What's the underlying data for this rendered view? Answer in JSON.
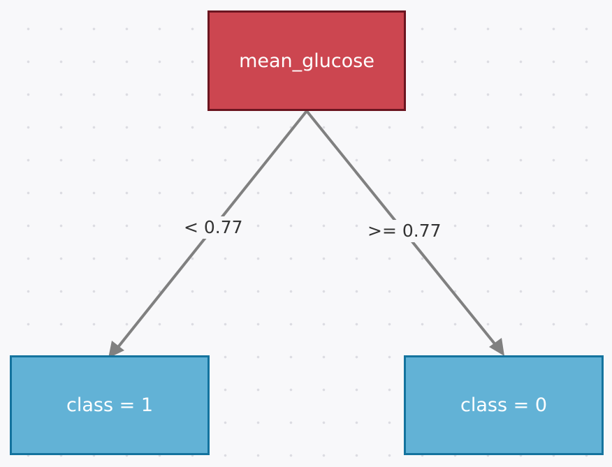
{
  "diagram": {
    "root": {
      "label": "mean_glucose",
      "color": "#cc4650"
    },
    "edges": {
      "left": {
        "label": "< 0.77"
      },
      "right": {
        "label": ">= 0.77"
      }
    },
    "leaves": {
      "left": {
        "label": "class = 1",
        "color": "#62b2d6"
      },
      "right": {
        "label": "class = 0",
        "color": "#62b2d6"
      }
    },
    "edge_color": "#808080"
  }
}
